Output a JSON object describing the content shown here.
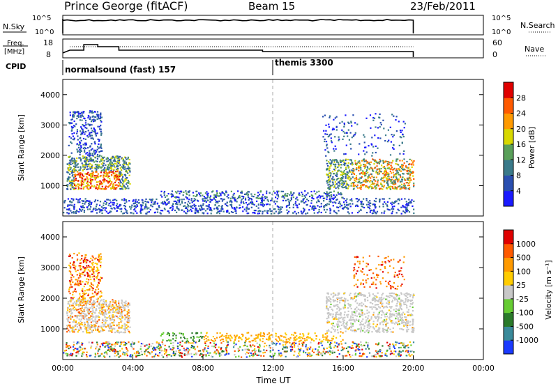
{
  "header": {
    "station": "Prince George (fitACF)",
    "beam": "Beam 15",
    "date": "23/Feb/2011"
  },
  "panels": {
    "nsky_label": "N.Sky",
    "nsky_ticks": [
      "10^5",
      "10^0"
    ],
    "nsearch_label": "N.Search",
    "nsearch_ticks": [
      "10^5",
      "10^0"
    ],
    "freq_label": "Freq.",
    "freq_unit": "[MHz]",
    "freq_ticks": [
      "18",
      "8"
    ],
    "nave_label": "Nave",
    "nave_ticks": [
      "60",
      "0"
    ],
    "cpid_label": "CPID",
    "cpid_modes": [
      {
        "name": "normalsound (fast) 157",
        "start_hour": 0
      },
      {
        "name": "themis 3300",
        "start_hour": 12
      }
    ]
  },
  "chart_data": [
    {
      "type": "heatmap",
      "panel": "power",
      "ylabel": "Slant Range [km]",
      "ylim": [
        0,
        4500
      ],
      "yticks": [
        "1000",
        "2000",
        "3000",
        "4000"
      ],
      "xlim_hours": [
        0,
        24
      ],
      "colorbar": {
        "label": "Power [dB]",
        "ticks": [
          "4",
          "8",
          "12",
          "16",
          "20",
          "24",
          "28"
        ],
        "colors": [
          "#1a1aff",
          "#2a4fb0",
          "#3a7a8a",
          "#5aa05a",
          "#d8d800",
          "#ff9a00",
          "#ff5a00",
          "#e00000"
        ]
      }
    },
    {
      "type": "heatmap",
      "panel": "velocity",
      "ylabel": "Slant Range [km]",
      "ylim": [
        0,
        4500
      ],
      "yticks": [
        "1000",
        "2000",
        "3000",
        "4000"
      ],
      "xlim_hours": [
        0,
        24
      ],
      "xlabel": "Time UT",
      "xticks": [
        "00:00",
        "04:00",
        "08:00",
        "12:00",
        "16:00",
        "20:00",
        "00:00"
      ],
      "colorbar": {
        "label": "Velocity [m s⁻¹]",
        "ticks": [
          "1000",
          "500",
          "100",
          "25",
          "-25",
          "-100",
          "-500",
          "-1000"
        ],
        "colors": [
          "#1a3aff",
          "#3a8a9a",
          "#2a7a2a",
          "#66cc33",
          "#c8c8c8",
          "#ffcc00",
          "#ff9a00",
          "#ff5a00",
          "#e00000"
        ]
      }
    }
  ]
}
